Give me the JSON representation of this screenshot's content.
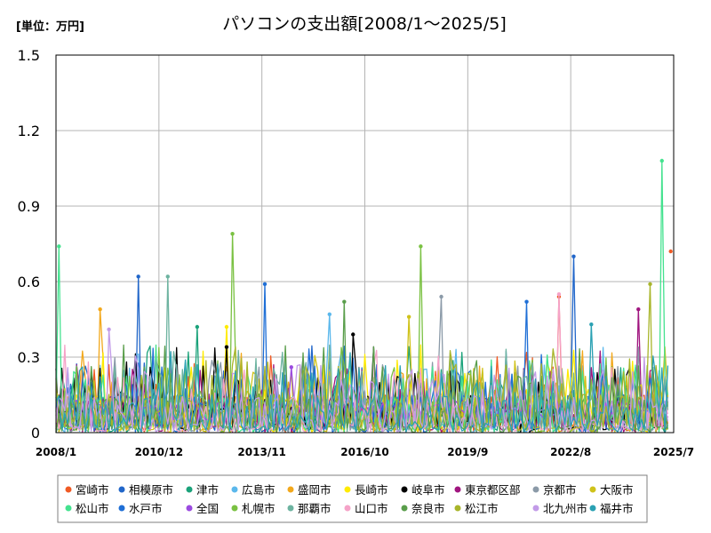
{
  "chart_data": {
    "type": "line",
    "title": "パソコンの支出額[2008/1～2025/5]",
    "unit_label": "[単位：万円]",
    "xlabel": "",
    "ylabel": "",
    "ylim": [
      0,
      1.5
    ],
    "yticks": [
      "0",
      "0.3",
      "0.6",
      "0.9",
      "1.2",
      "1.5"
    ],
    "ytick_values": [
      0,
      0.3,
      0.6,
      0.9,
      1.2,
      1.5
    ],
    "xticks": [
      "2008/1",
      "2010/12",
      "2013/11",
      "2016/10",
      "2019/9",
      "2022/8",
      "2025/7"
    ],
    "x_start": "2008/1",
    "x_end": "2025/7",
    "months_total": 210,
    "grid": true,
    "legend_position": "bottom",
    "series": [
      {
        "name": "宮崎市",
        "color": "#f05a24",
        "peaks": [
          [
            171,
            0.54
          ],
          [
            209,
            0.72
          ]
        ]
      },
      {
        "name": "相模原市",
        "color": "#2166c9",
        "peaks": [
          [
            28,
            0.62
          ],
          [
            176,
            0.7
          ]
        ]
      },
      {
        "name": "津市",
        "color": "#1aa27a",
        "peaks": [
          [
            48,
            0.42
          ]
        ]
      },
      {
        "name": "広島市",
        "color": "#5bb8ec",
        "peaks": [
          [
            93,
            0.47
          ]
        ]
      },
      {
        "name": "盛岡市",
        "color": "#f2a81c",
        "peaks": [
          [
            15,
            0.49
          ]
        ]
      },
      {
        "name": "長崎市",
        "color": "#ffeb00",
        "peaks": [
          [
            58,
            0.42
          ]
        ]
      },
      {
        "name": "岐阜市",
        "color": "#000000",
        "peaks": [
          [
            101,
            0.39
          ],
          [
            58,
            0.34
          ]
        ]
      },
      {
        "name": "東京都区部",
        "color": "#a0157f",
        "peaks": [
          [
            198,
            0.49
          ]
        ]
      },
      {
        "name": "京都市",
        "color": "#8b9aa8",
        "peaks": [
          [
            131,
            0.54
          ]
        ]
      },
      {
        "name": "大阪市",
        "color": "#cfc21a",
        "peaks": [
          [
            120,
            0.46
          ]
        ]
      },
      {
        "name": "松山市",
        "color": "#44e28f",
        "peaks": [
          [
            1,
            0.74
          ],
          [
            206,
            1.08
          ]
        ]
      },
      {
        "name": "水戸市",
        "color": "#1f6fd6",
        "peaks": [
          [
            71,
            0.59
          ],
          [
            160,
            0.52
          ]
        ]
      },
      {
        "name": "全国",
        "color": "#9b4be0",
        "peaks": [
          [
            80,
            0.26
          ]
        ]
      },
      {
        "name": "札幌市",
        "color": "#7ac142",
        "peaks": [
          [
            60,
            0.79
          ],
          [
            124,
            0.74
          ]
        ]
      },
      {
        "name": "那覇市",
        "color": "#6db3a0",
        "peaks": [
          [
            38,
            0.62
          ]
        ]
      },
      {
        "name": "山口市",
        "color": "#f5a3c8",
        "peaks": [
          [
            171,
            0.55
          ]
        ]
      },
      {
        "name": "奈良市",
        "color": "#5a9e4b",
        "peaks": [
          [
            98,
            0.52
          ]
        ]
      },
      {
        "name": "松江市",
        "color": "#a8b52a",
        "peaks": [
          [
            202,
            0.59
          ]
        ]
      },
      {
        "name": "北九州市",
        "color": "#c29be8",
        "peaks": [
          [
            18,
            0.41
          ]
        ]
      },
      {
        "name": "福井市",
        "color": "#2aa1b3",
        "peaks": [
          [
            182,
            0.43
          ]
        ]
      }
    ]
  }
}
